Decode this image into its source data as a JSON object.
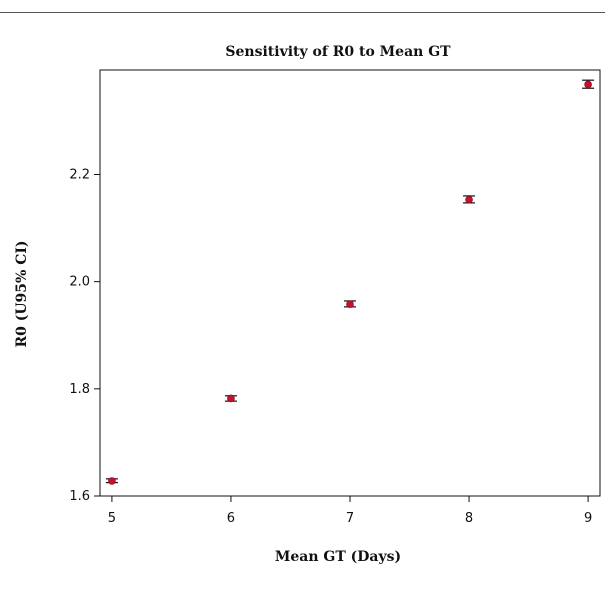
{
  "chart_data": {
    "type": "scatter",
    "title": "Sensitivity of R0 to Mean GT",
    "xlabel": "Mean GT (Days)",
    "ylabel": "R0 (U95% CI)",
    "xlim": [
      4.9,
      9.1
    ],
    "ylim": [
      1.6,
      2.395
    ],
    "x_ticks": [
      5,
      6,
      7,
      8,
      9
    ],
    "x_tick_labels": [
      "5",
      "6",
      "7",
      "8",
      "9"
    ],
    "y_ticks": [
      1.6,
      1.8,
      2.0,
      2.2
    ],
    "y_tick_labels": [
      "1.6",
      "1.8",
      "2.0",
      "2.2"
    ],
    "grid": false,
    "point_color": "#c8102e",
    "errorbar_color": "#111111",
    "points": [
      {
        "x": 5,
        "y": 1.628,
        "lower": 1.625,
        "upper": 1.632
      },
      {
        "x": 6,
        "y": 1.782,
        "lower": 1.777,
        "upper": 1.787
      },
      {
        "x": 7,
        "y": 1.958,
        "lower": 1.953,
        "upper": 1.964
      },
      {
        "x": 8,
        "y": 2.153,
        "lower": 2.147,
        "upper": 2.16
      },
      {
        "x": 9,
        "y": 2.368,
        "lower": 2.361,
        "upper": 2.376
      }
    ]
  }
}
